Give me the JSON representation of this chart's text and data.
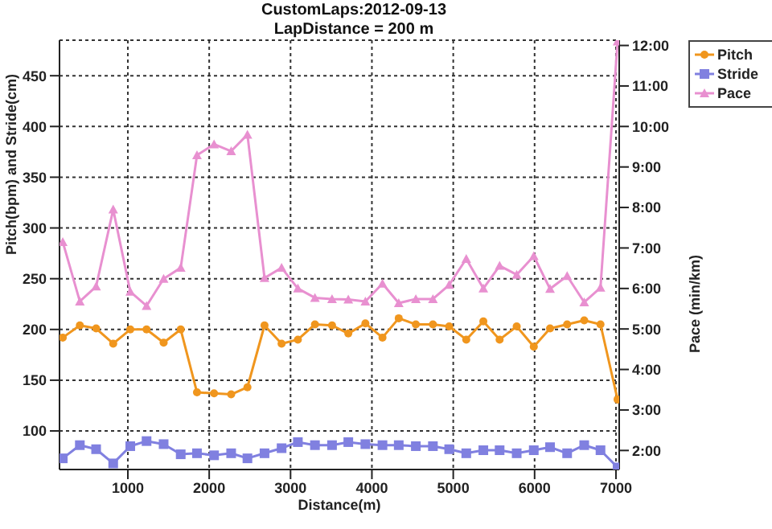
{
  "chart_data": {
    "type": "line",
    "title": "CustomLaps:2012-09-13",
    "subtitle": "LapDistance = 200 m",
    "xlabel": "Distance(m)",
    "ylabel": "Pitch(bpm) and Stride(cm)",
    "y2label": "Pace (min/km)",
    "x": [
      200,
      410,
      610,
      820,
      1030,
      1230,
      1440,
      1650,
      1850,
      2060,
      2270,
      2470,
      2680,
      2890,
      3090,
      3300,
      3510,
      3710,
      3920,
      4130,
      4330,
      4540,
      4750,
      4950,
      5160,
      5370,
      5570,
      5780,
      5990,
      6190,
      6400,
      6610,
      6810,
      7020
    ],
    "series": [
      {
        "name": "Pitch",
        "color": "#f0961e",
        "marker": "circle",
        "values": [
          192,
          204,
          201,
          186,
          200,
          200,
          187,
          200,
          138,
          137,
          136,
          143,
          204,
          186,
          190,
          205,
          204,
          196,
          206,
          192,
          211,
          205,
          205,
          203,
          190,
          208,
          190,
          203,
          183,
          201,
          205,
          209,
          205,
          131
        ]
      },
      {
        "name": "Stride",
        "color": "#8080e0",
        "marker": "square",
        "values": [
          73,
          86,
          82,
          68,
          85,
          90,
          87,
          77,
          78,
          76,
          78,
          73,
          78,
          83,
          89,
          86,
          86,
          89,
          87,
          86,
          86,
          85,
          85,
          82,
          78,
          81,
          81,
          78,
          81,
          84,
          78,
          86,
          81,
          64
        ]
      },
      {
        "name": "Pace",
        "color": "#e890d0",
        "marker": "triangle",
        "axis": "y2",
        "values": [
          7.15,
          5.68,
          6.05,
          7.95,
          5.92,
          5.57,
          6.24,
          6.51,
          9.29,
          9.56,
          9.39,
          9.8,
          6.26,
          6.51,
          6.0,
          5.77,
          5.74,
          5.73,
          5.68,
          6.12,
          5.64,
          5.74,
          5.74,
          6.09,
          6.73,
          6.0,
          6.56,
          6.34,
          6.8,
          5.99,
          6.31,
          5.66,
          6.02,
          12.1
        ]
      }
    ],
    "xlim": [
      160,
      7040
    ],
    "xticks": [
      1000,
      2000,
      3000,
      4000,
      5000,
      6000,
      7000
    ],
    "ylim": [
      62,
      485
    ],
    "yticks": [
      100,
      150,
      200,
      250,
      300,
      350,
      400,
      450
    ],
    "y2lim": [
      1.53,
      12.13
    ],
    "y2ticks": [
      {
        "value": 2,
        "label": "2:00"
      },
      {
        "value": 3,
        "label": "3:00"
      },
      {
        "value": 4,
        "label": "4:00"
      },
      {
        "value": 5,
        "label": "5:00"
      },
      {
        "value": 6,
        "label": "6:00"
      },
      {
        "value": 7,
        "label": "7:00"
      },
      {
        "value": 8,
        "label": "8:00"
      },
      {
        "value": 9,
        "label": "9:00"
      },
      {
        "value": 10,
        "label": "10:00"
      },
      {
        "value": 11,
        "label": "11:00"
      },
      {
        "value": 12,
        "label": "12:00"
      }
    ],
    "grid": true,
    "legend": "top right",
    "line_style": "solid"
  }
}
